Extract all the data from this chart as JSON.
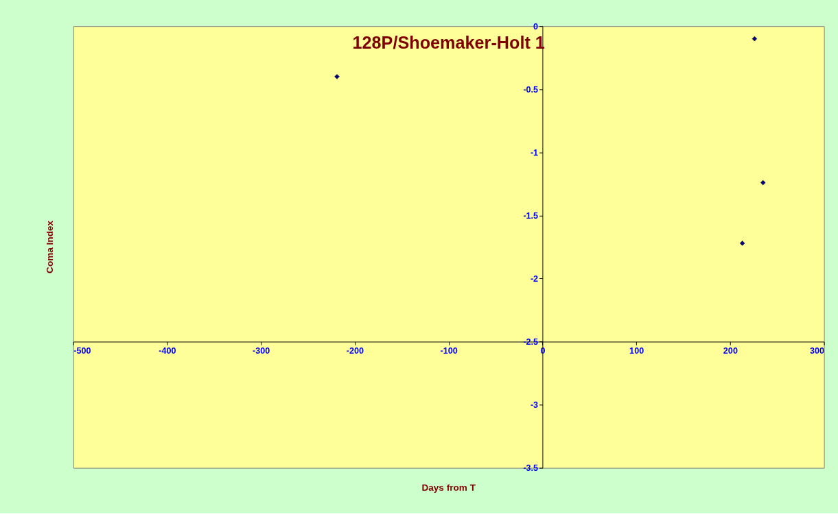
{
  "chart_data": {
    "type": "scatter",
    "title": "128P/Shoemaker-Holt 1",
    "xlabel": "Days from T",
    "ylabel": "Coma Index",
    "x": [
      -219,
      226,
      235,
      213
    ],
    "series": [
      {
        "color": "#000080",
        "values": [
          -0.4,
          -0.1,
          -1.24,
          -1.72
        ]
      }
    ],
    "xlim": [
      -500,
      300
    ],
    "xticks": [
      -500,
      -400,
      -300,
      -200,
      -100,
      0,
      100,
      200,
      300
    ],
    "ylim": [
      -3.5,
      0
    ],
    "yticks": [
      -3.5,
      -3,
      -2.5,
      -2,
      -1.5,
      -1,
      -0.5,
      0
    ],
    "marker": "diamond",
    "grid": false,
    "legend": false
  }
}
